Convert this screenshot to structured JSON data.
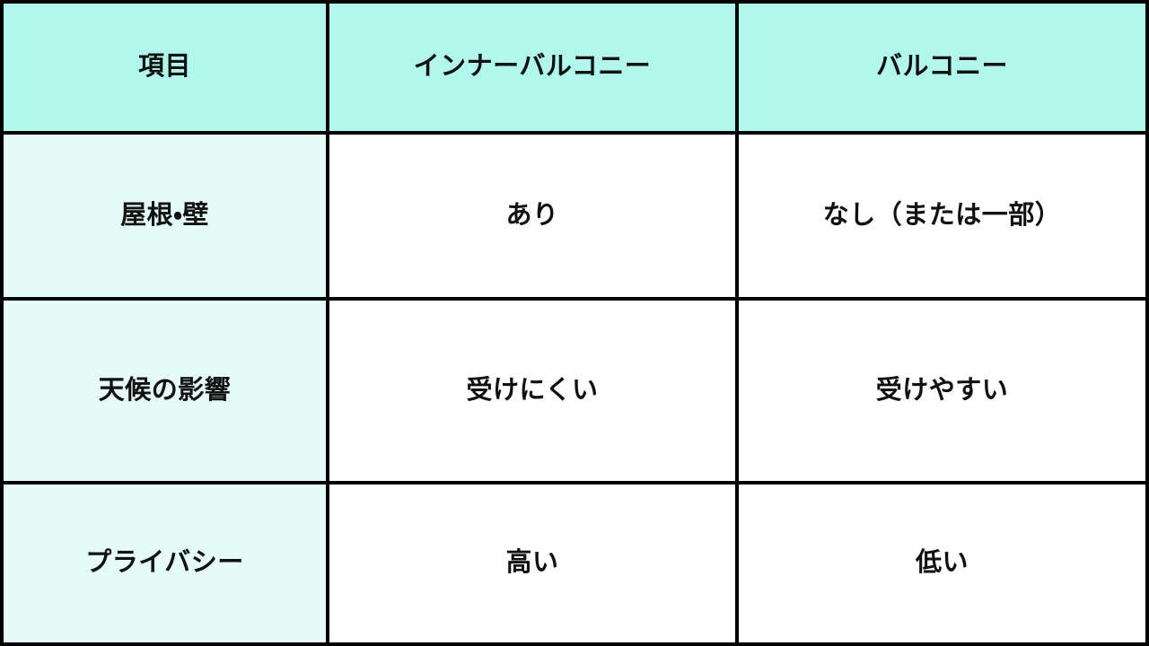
{
  "chart_data": {
    "type": "table",
    "title": "",
    "columns": [
      "項目",
      "インナーバルコニー",
      "バルコニー"
    ],
    "rows": [
      [
        "屋根・壁",
        "あり",
        "なし（または一部）"
      ],
      [
        "天候の影響",
        "受けにくい",
        "受けやすい"
      ],
      [
        "プライバシー",
        "高い",
        "低い"
      ]
    ]
  },
  "colors": {
    "header_bg": "#b2f7ec",
    "row_label_bg": "#e4fbf7",
    "cell_bg": "#ffffff",
    "border": "#000000",
    "text": "#111111"
  }
}
